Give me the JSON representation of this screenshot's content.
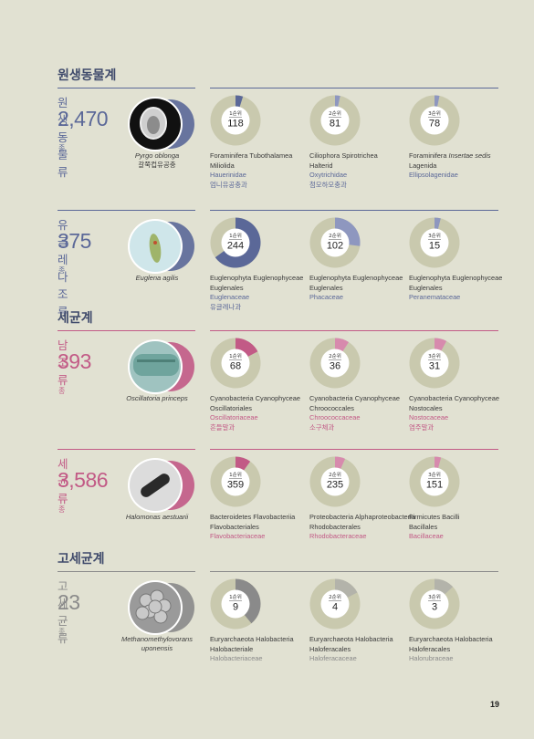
{
  "page_number": "19",
  "colors": {
    "protist": "#5b6898",
    "bacteria": "#c25a86",
    "archaea": "#8a8a8a",
    "ring": "#c9c9ae"
  },
  "sections": [
    {
      "title": "원생동물계",
      "theme": "protist",
      "groups": [
        {
          "name": "원생동물류",
          "count": "2,470",
          "unit": "종",
          "specimen_icon": "pyrgo-micrograph",
          "caption": "Pyrgo oblonga",
          "caption_ko": "갈쭉컵유공충",
          "ranks": [
            {
              "rank_label": "1순위",
              "value": 118,
              "fraction": 0.048,
              "lines": [
                "Foraminifera Tubothalamea",
                "Miliolida",
                "Hauerinidae",
                "엄니유공충과"
              ]
            },
            {
              "rank_label": "2순위",
              "value": 81,
              "fraction": 0.033,
              "lines": [
                "Ciliophora Spirotrichea",
                "Halterid",
                "Oxytrichidae",
                "첨모하모충과"
              ]
            },
            {
              "rank_label": "3순위",
              "value": 78,
              "fraction": 0.032,
              "lines": [
                "Foraminifera Insertae sedis",
                "Lagenida",
                "Ellipsolagenidae",
                ""
              ]
            }
          ]
        },
        {
          "name": "유글레나조류",
          "count": "375",
          "unit": "종",
          "specimen_icon": "euglena-micrograph",
          "caption": "Euglena agilis",
          "caption_ko": "",
          "ranks": [
            {
              "rank_label": "1순위",
              "value": 244,
              "fraction": 0.65,
              "lines": [
                "Euglenophyta Euglenophyceae",
                "Euglenales",
                "Euglenaceae",
                "유글레나과"
              ]
            },
            {
              "rank_label": "2순위",
              "value": 102,
              "fraction": 0.272,
              "lines": [
                "Euglenophyta Euglenophyceae",
                "Euglenales",
                "Phacaceae",
                ""
              ]
            },
            {
              "rank_label": "3순위",
              "value": 15,
              "fraction": 0.04,
              "lines": [
                "Euglenophyta Euglenophyceae",
                "Euglenales",
                "Peranemataceae",
                ""
              ]
            }
          ]
        }
      ]
    },
    {
      "title": "세균계",
      "theme": "bacteria",
      "groups": [
        {
          "name": "남조류",
          "count": "393",
          "unit": "종",
          "specimen_icon": "oscillatoria-micrograph",
          "caption": "Oscillatoria princeps",
          "caption_ko": "",
          "ranks": [
            {
              "rank_label": "1순위",
              "value": 68,
              "fraction": 0.173,
              "lines": [
                "Cyanobacteria Cyanophyceae",
                "Oscillatoriales",
                "Oscillatoriaceae",
                "흔들말과"
              ]
            },
            {
              "rank_label": "2순위",
              "value": 36,
              "fraction": 0.092,
              "lines": [
                "Cyanobacteria Cyanophyceae",
                "Chroococcales",
                "Chroococcaceae",
                "소구체과"
              ]
            },
            {
              "rank_label": "3순위",
              "value": 31,
              "fraction": 0.079,
              "lines": [
                "Cyanobacteria Cyanophyceae",
                "Nostocales",
                "Nostocaceae",
                "염주말과"
              ]
            }
          ]
        },
        {
          "name": "세균류",
          "count": "3,586",
          "unit": "종",
          "specimen_icon": "halomonas-micrograph",
          "caption": "Halomonas aestuarii",
          "caption_ko": "",
          "ranks": [
            {
              "rank_label": "1순위",
              "value": 359,
              "fraction": 0.1,
              "lines": [
                "Bacteroidetes Flavobacteriia",
                "Flavobacteriales",
                "Flavobacteriaceae",
                ""
              ]
            },
            {
              "rank_label": "2순위",
              "value": 235,
              "fraction": 0.066,
              "lines": [
                "Proteobacteria Alphaproteobacteria",
                "Rhodobacterales",
                "Rhodobacteraceae",
                ""
              ]
            },
            {
              "rank_label": "3순위",
              "value": 151,
              "fraction": 0.042,
              "lines": [
                "Firmicutes Bacilli",
                "Bacillales",
                "Bacillaceae",
                ""
              ]
            }
          ]
        }
      ]
    },
    {
      "title": "고세균계",
      "theme": "archaea",
      "groups": [
        {
          "name": "고세균류",
          "count": "23",
          "unit": "종",
          "specimen_icon": "archaea-micrograph",
          "caption": "Methanomethylovorans",
          "caption_ko": "uponensis",
          "ranks": [
            {
              "rank_label": "1순위",
              "value": 9,
              "fraction": 0.391,
              "lines": [
                "Euryarchaeota Halobacteria",
                "Halobacteriale",
                "Halobacteriaceae",
                ""
              ]
            },
            {
              "rank_label": "2순위",
              "value": 4,
              "fraction": 0.174,
              "lines": [
                "Euryarchaeota Halobacteria",
                "Haloferacales",
                "Haloferacaceae",
                ""
              ]
            },
            {
              "rank_label": "3순위",
              "value": 3,
              "fraction": 0.13,
              "lines": [
                "Euryarchaeota Halobacteria",
                "Haloferacales",
                "Halorubraceae",
                ""
              ]
            }
          ]
        }
      ]
    }
  ]
}
